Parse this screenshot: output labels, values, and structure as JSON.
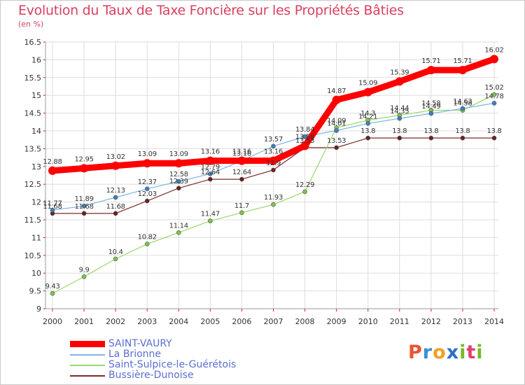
{
  "title": "Evolution du Taux de Taxe Foncière sur les Propriétés Bâties",
  "subtitle": "(en %)",
  "logo_text": "Proxiti",
  "chart_data": {
    "type": "line",
    "title": "Evolution du Taux de Taxe Foncière sur les Propriétés Bâties",
    "ylabel": "(en %)",
    "xlabel": "",
    "ylim": [
      9,
      16.5
    ],
    "yticks": [
      "9",
      "9.5",
      "10",
      "10.5",
      "11",
      "11.5",
      "12",
      "12.5",
      "13",
      "13.5",
      "14",
      "14.5",
      "15",
      "15.5",
      "16",
      "16.5"
    ],
    "ytick_values": [
      9,
      9.5,
      10,
      10.5,
      11,
      11.5,
      12,
      12.5,
      13,
      13.5,
      14,
      14.5,
      15,
      15.5,
      16,
      16.5
    ],
    "grid": true,
    "legend_position": "bottom-left",
    "x": [
      "2000",
      "2001",
      "2002",
      "2003",
      "2004",
      "2005",
      "2006",
      "2007",
      "2008",
      "2009",
      "2010",
      "2011",
      "2012",
      "2013",
      "2014"
    ],
    "series": [
      {
        "name": "Bussière-Dunoise",
        "color": "#7a2a2a",
        "marker": "#6b1f1f",
        "width": 1.2,
        "labels": [
          "11.68",
          "11.68",
          "11.68",
          "12.03",
          "12.39",
          "12.64",
          "12.64",
          "12.9",
          "13.53",
          "13.53",
          "13.8",
          "13.8",
          "13.8",
          "13.8",
          "13.8"
        ],
        "values": [
          11.68,
          11.68,
          11.68,
          12.03,
          12.39,
          12.64,
          12.64,
          12.9,
          13.53,
          13.53,
          13.8,
          13.8,
          13.8,
          13.8,
          13.8
        ]
      },
      {
        "name": "Saint-Sulpice-le-Guérétois",
        "color": "#98d86a",
        "marker": "#7cc44c",
        "width": 1.2,
        "labels": [
          "9.43",
          "9.9",
          "10.4",
          "10.82",
          "11.14",
          "11.47",
          "11.7",
          "11.93",
          "12.29",
          "14.09",
          "14.3",
          "14.44",
          "14.58",
          "14.58",
          "15.02"
        ],
        "values": [
          9.43,
          9.9,
          10.4,
          10.82,
          11.14,
          11.47,
          11.7,
          11.93,
          12.29,
          14.09,
          14.3,
          14.44,
          14.58,
          14.58,
          15.02
        ]
      },
      {
        "name": "La Brionne",
        "color": "#7eb6df",
        "marker": "#3c7ec0",
        "width": 1.2,
        "labels": [
          "11.77",
          "11.89",
          "12.13",
          "12.37",
          "12.58",
          "12.79",
          "13.16",
          "13.57",
          "13.84",
          "14.01",
          "14.21",
          "14.35",
          "14.49",
          "14.63",
          "14.78"
        ],
        "values": [
          11.77,
          11.89,
          12.13,
          12.37,
          12.58,
          12.79,
          13.16,
          13.57,
          13.84,
          14.01,
          14.21,
          14.35,
          14.49,
          14.63,
          14.78
        ]
      },
      {
        "name": "SAINT-VAURY",
        "color": "#ff0000",
        "marker": "#ff0000",
        "width": 9,
        "labels": [
          "12.88",
          "12.95",
          "13.02",
          "13.09",
          "13.09",
          "13.16",
          "13.16",
          "13.16",
          "13.58",
          "14.87",
          "15.09",
          "15.39",
          "15.71",
          "15.71",
          "16.02"
        ],
        "values": [
          12.88,
          12.95,
          13.02,
          13.09,
          13.09,
          13.16,
          13.16,
          13.16,
          13.58,
          14.87,
          15.09,
          15.39,
          15.71,
          15.71,
          16.02
        ]
      }
    ],
    "legend": [
      {
        "name": "SAINT-VAURY",
        "color": "#ff0000",
        "width": 9
      },
      {
        "name": "La Brionne",
        "color": "#7eb6df",
        "width": 1.5
      },
      {
        "name": "Saint-Sulpice-le-Guérétois",
        "color": "#98d86a",
        "width": 1.5
      },
      {
        "name": "Bussière-Dunoise",
        "color": "#7a2a2a",
        "width": 1.5
      }
    ]
  },
  "colors": {
    "title": "#d8405f",
    "axis_text": "#333333",
    "legend_text": "#5a6fd0",
    "logo_p": "#e8542f",
    "logo_r": "#3a8fd4",
    "logo_o": "#f0a020",
    "logo_x": "#2e6fc4",
    "logo_i": "#78b82a",
    "logo_t": "#e04070",
    "logo_i2": "#78b82a"
  }
}
